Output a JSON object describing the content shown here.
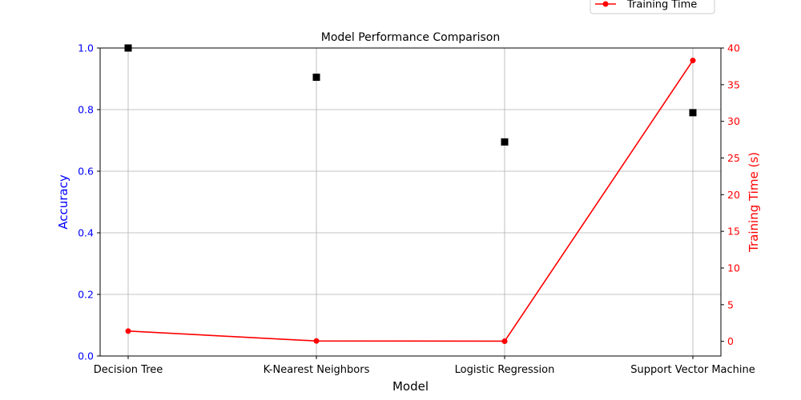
{
  "chart_data": {
    "type": "line",
    "title": "Model Performance Comparison",
    "xlabel": "Model",
    "categories": [
      "Decision Tree",
      "K-Nearest Neighbors",
      "Logistic Regression",
      "Support Vector Machine"
    ],
    "y_left": {
      "label": "Accuracy",
      "ylim": [
        0,
        1
      ],
      "ticks": [
        "0.0",
        "0.2",
        "0.4",
        "0.6",
        "0.8",
        "1.0"
      ],
      "color": "#0000ff"
    },
    "y_right": {
      "label": "Training Time (s)",
      "ylim": [
        -2,
        40
      ],
      "ticks": [
        "0",
        "5",
        "10",
        "15",
        "20",
        "25",
        "30",
        "35",
        "40"
      ],
      "color": "#ff0000"
    },
    "series": [
      {
        "values": [
          1.0,
          0.905,
          0.695,
          0.79
        ],
        "axis": "left",
        "style": "square-markers",
        "color": "#000000"
      },
      {
        "name": "Training Time",
        "values": [
          1.4,
          0.05,
          0.02,
          38.3
        ],
        "axis": "right",
        "style": "line-with-circle-markers",
        "color": "#ff0000"
      }
    ],
    "grid": true,
    "legend_position": "top-right"
  }
}
